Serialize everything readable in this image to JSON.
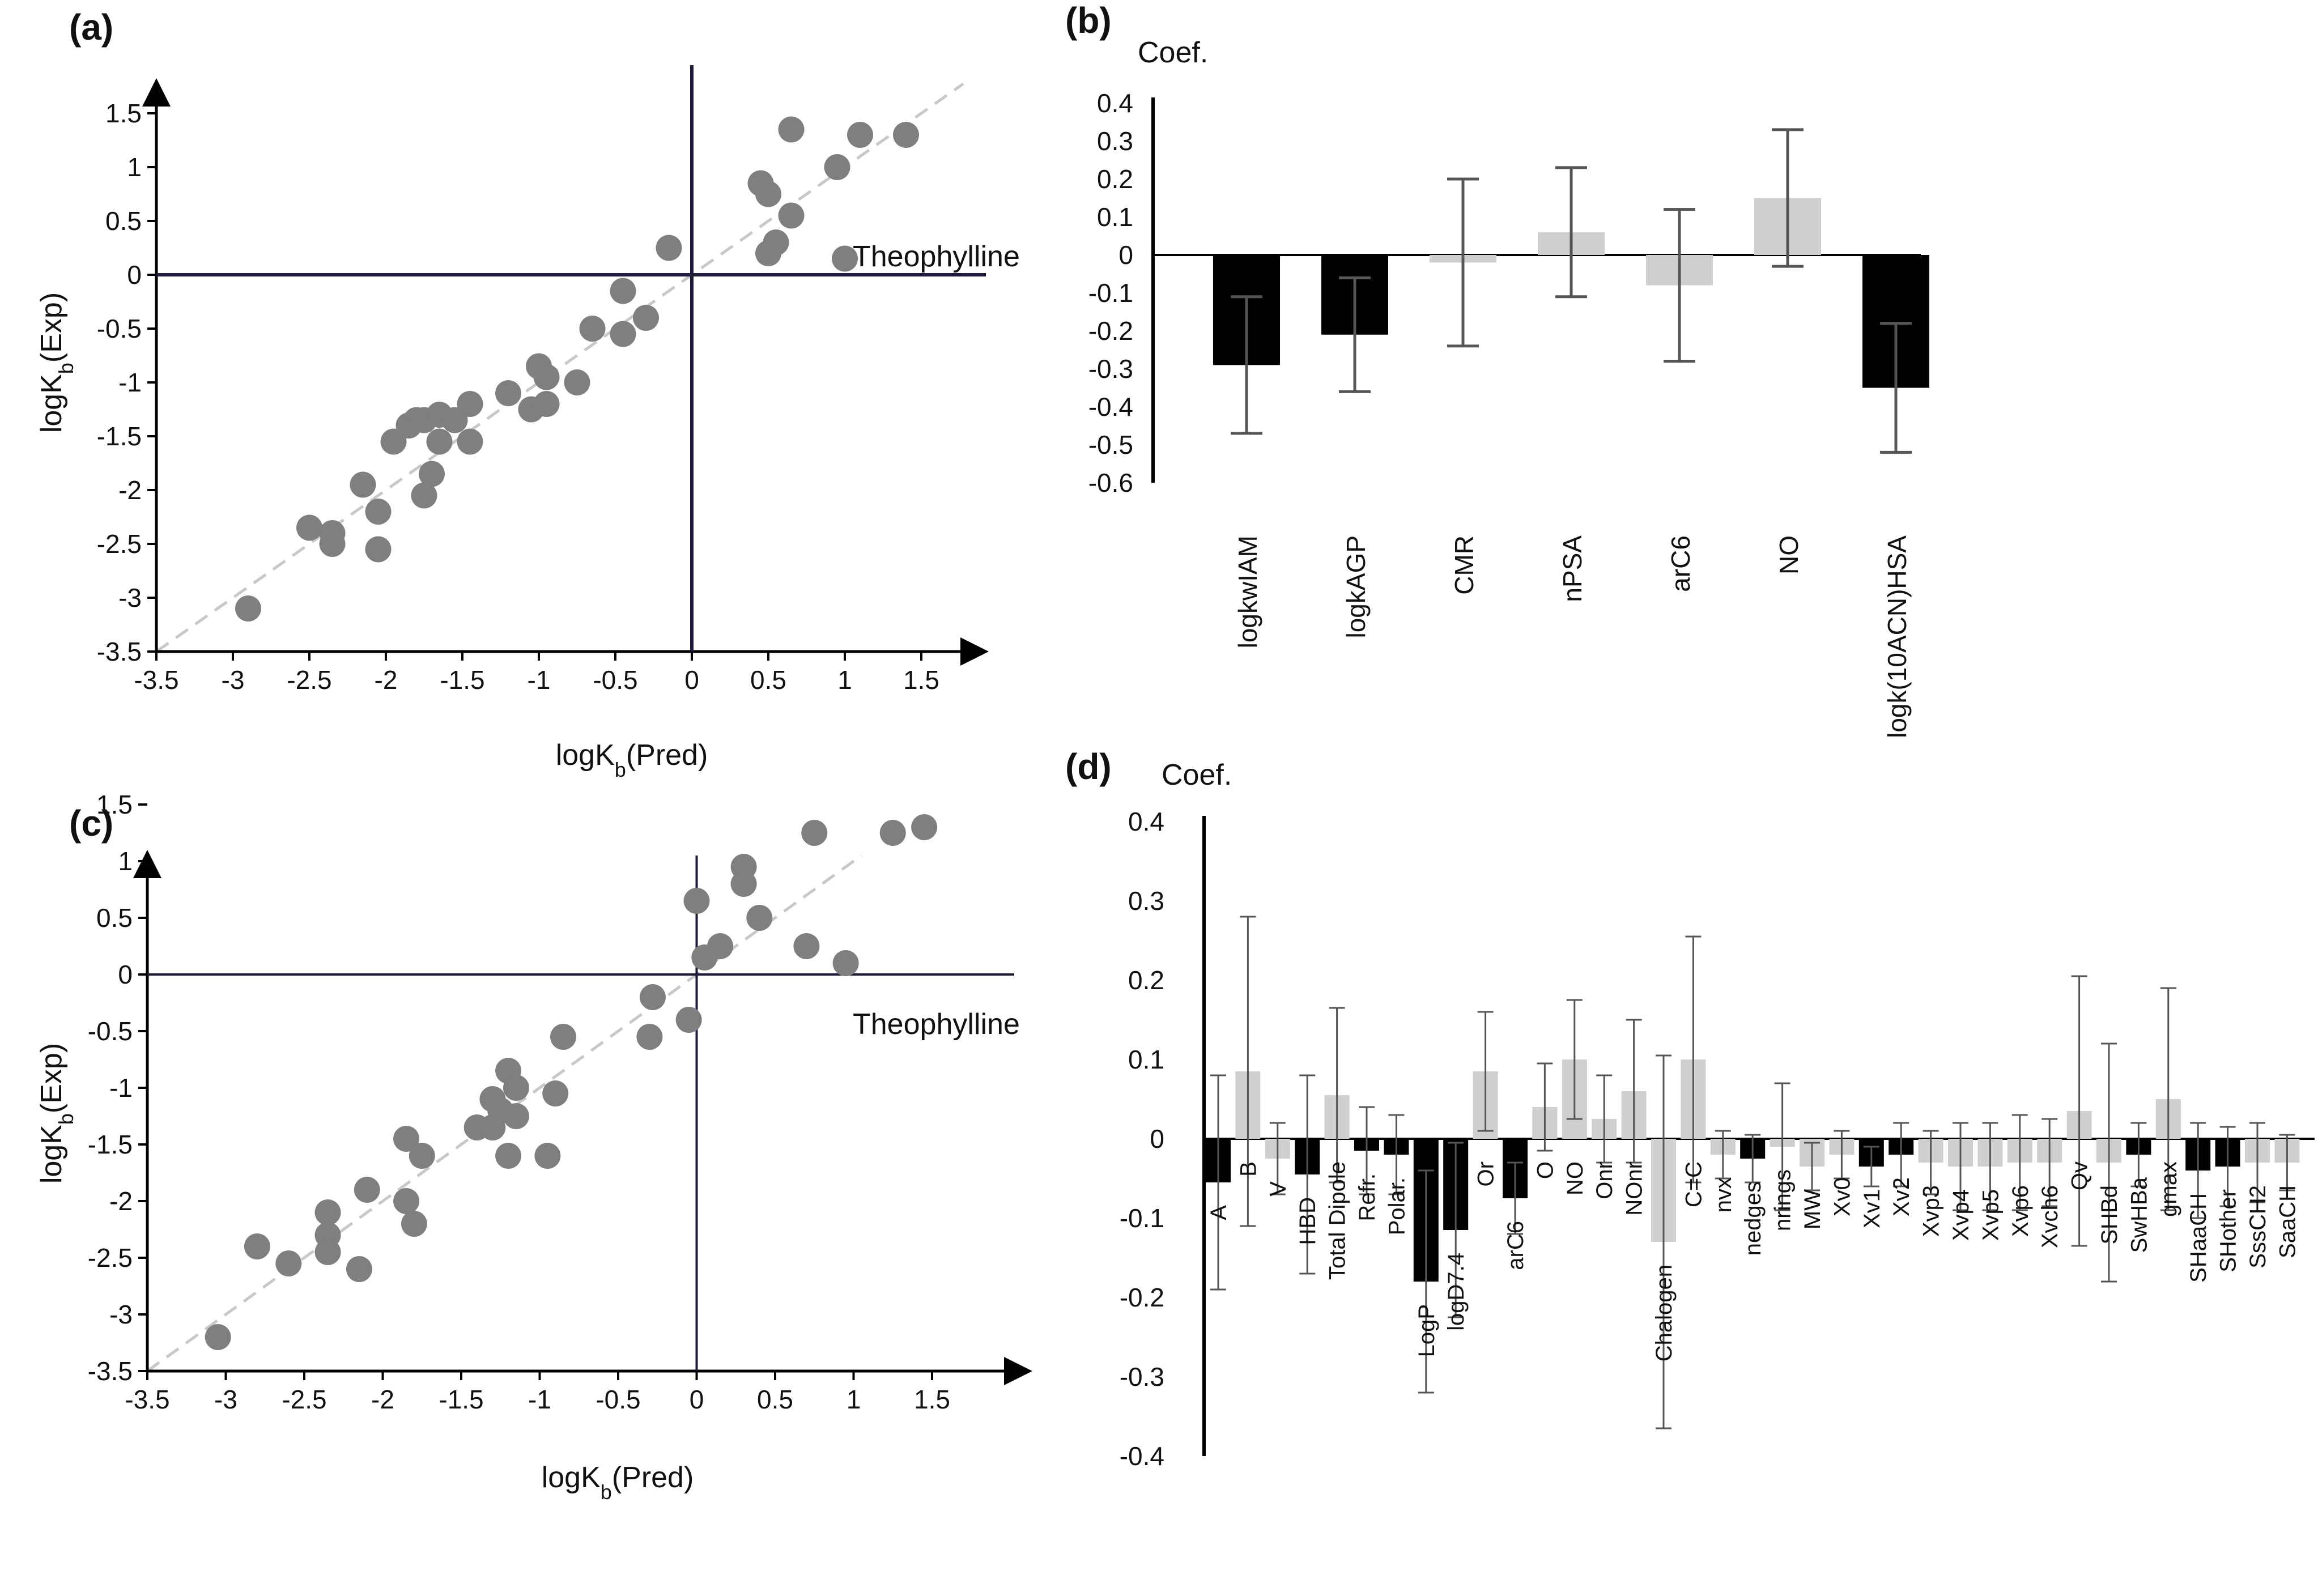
{
  "chart_data": [
    {
      "panel": "(a)",
      "type": "scatter",
      "xlabel": "logK",
      "xlabel_sub": "b",
      "xlabel_suffix": "(Pred)",
      "ylabel": "logK",
      "ylabel_sub": "b",
      "ylabel_suffix": "(Exp)",
      "xlim": [
        -3.5,
        2.0
      ],
      "ylim": [
        -3.5,
        2.0
      ],
      "x_ticks": [
        "-3.5",
        "-3",
        "-2.5",
        "-2",
        "-1.5",
        "-1",
        "-0.5",
        "0",
        "0.5",
        "1",
        "1.5"
      ],
      "y_ticks": [
        "-3.5",
        "-3",
        "-2.5",
        "-2",
        "-1.5",
        "-1",
        "-0.5",
        "0",
        "0.5",
        "1",
        "1.5"
      ],
      "annotation": "Theophylline",
      "reference_line": "y = x (dashed)",
      "points": [
        [
          -2.9,
          -3.1
        ],
        [
          -2.5,
          -2.35
        ],
        [
          -2.35,
          -2.5
        ],
        [
          -2.35,
          -2.4
        ],
        [
          -2.15,
          -1.95
        ],
        [
          -2.05,
          -2.2
        ],
        [
          -2.05,
          -2.55
        ],
        [
          -1.95,
          -1.55
        ],
        [
          -1.85,
          -1.4
        ],
        [
          -1.8,
          -1.35
        ],
        [
          -1.75,
          -1.35
        ],
        [
          -1.75,
          -2.05
        ],
        [
          -1.7,
          -1.85
        ],
        [
          -1.65,
          -1.3
        ],
        [
          -1.65,
          -1.55
        ],
        [
          -1.55,
          -1.35
        ],
        [
          -1.45,
          -1.55
        ],
        [
          -1.45,
          -1.2
        ],
        [
          -1.2,
          -1.1
        ],
        [
          -1.05,
          -1.25
        ],
        [
          -1.0,
          -0.85
        ],
        [
          -0.95,
          -1.2
        ],
        [
          -0.95,
          -0.95
        ],
        [
          -0.75,
          -1.0
        ],
        [
          -0.65,
          -0.5
        ],
        [
          -0.45,
          -0.55
        ],
        [
          -0.45,
          -0.15
        ],
        [
          -0.3,
          -0.4
        ],
        [
          -0.15,
          0.25
        ],
        [
          0.45,
          0.85
        ],
        [
          0.5,
          0.75
        ],
        [
          0.5,
          0.2
        ],
        [
          0.55,
          0.3
        ],
        [
          0.65,
          0.55
        ],
        [
          0.65,
          1.35
        ],
        [
          0.95,
          1.0
        ],
        [
          1.0,
          0.15
        ],
        [
          1.1,
          1.3
        ],
        [
          1.4,
          1.3
        ]
      ]
    },
    {
      "panel": "(b)",
      "type": "bar",
      "title": "Coef.",
      "ylim": [
        -0.6,
        0.4
      ],
      "y_ticks": [
        "0.4",
        "0.3",
        "0.2",
        "0.1",
        "0",
        "-0.1",
        "-0.2",
        "-0.3",
        "-0.4",
        "-0.5",
        "-0.6"
      ],
      "categories": [
        "logkwIAM",
        "logkAGP",
        "CMR",
        "nPSA",
        "arC6",
        "NO",
        "logk(10ACN)HSA"
      ],
      "values": [
        -0.29,
        -0.21,
        -0.02,
        0.06,
        -0.08,
        0.15,
        -0.35
      ],
      "error": [
        0.18,
        0.15,
        0.22,
        0.17,
        0.2,
        0.18,
        0.17
      ],
      "significant": [
        true,
        true,
        false,
        false,
        false,
        false,
        true
      ],
      "colors": {
        "significant": "#000000",
        "nonsignificant": "#cfcfcf"
      }
    },
    {
      "panel": "(c)",
      "type": "scatter",
      "xlabel": "logK",
      "xlabel_sub": "b",
      "xlabel_suffix": "(Pred)",
      "ylabel": "logK",
      "ylabel_sub": "b",
      "ylabel_suffix": "(Exp)",
      "xlim": [
        -3.5,
        2.0
      ],
      "ylim": [
        -3.5,
        2.0
      ],
      "x_ticks": [
        "-3.5",
        "-3",
        "-2.5",
        "-2",
        "-1.5",
        "-1",
        "-0.5",
        "0",
        "0.5",
        "1",
        "1.5"
      ],
      "y_ticks": [
        "-3.5",
        "-3",
        "-2.5",
        "-2",
        "-1.5",
        "-1",
        "-0.5",
        "0",
        "0.5",
        "1",
        "1.5"
      ],
      "annotation": "Theophylline",
      "reference_line": "y = x (dashed)",
      "points": [
        [
          -3.05,
          -3.2
        ],
        [
          -2.8,
          -2.4
        ],
        [
          -2.6,
          -2.55
        ],
        [
          -2.35,
          -2.3
        ],
        [
          -2.35,
          -2.45
        ],
        [
          -2.35,
          -2.1
        ],
        [
          -2.15,
          -2.6
        ],
        [
          -2.1,
          -1.9
        ],
        [
          -1.85,
          -2.0
        ],
        [
          -1.85,
          -1.45
        ],
        [
          -1.8,
          -2.2
        ],
        [
          -1.75,
          -1.6
        ],
        [
          -1.4,
          -1.35
        ],
        [
          -1.3,
          -1.1
        ],
        [
          -1.3,
          -1.35
        ],
        [
          -1.25,
          -1.2
        ],
        [
          -1.2,
          -0.85
        ],
        [
          -1.2,
          -1.6
        ],
        [
          -1.15,
          -1.0
        ],
        [
          -1.15,
          -1.25
        ],
        [
          -0.95,
          -1.6
        ],
        [
          -0.9,
          -1.05
        ],
        [
          -0.85,
          -0.55
        ],
        [
          -0.3,
          -0.55
        ],
        [
          -0.28,
          -0.2
        ],
        [
          -0.05,
          -0.4
        ],
        [
          0.0,
          0.65
        ],
        [
          0.05,
          0.15
        ],
        [
          0.15,
          0.25
        ],
        [
          0.3,
          0.95
        ],
        [
          0.3,
          0.8
        ],
        [
          0.4,
          0.5
        ],
        [
          0.7,
          0.25
        ],
        [
          0.75,
          1.25
        ],
        [
          0.95,
          0.1
        ],
        [
          1.25,
          1.25
        ],
        [
          1.45,
          1.3
        ]
      ]
    },
    {
      "panel": "(d)",
      "type": "bar",
      "title": "Coef.",
      "ylim": [
        -0.4,
        0.4
      ],
      "y_ticks": [
        "0.4",
        "0.3",
        "0.2",
        "0.1",
        "0",
        "-0.1",
        "-0.2",
        "-0.3",
        "-0.4"
      ],
      "categories": [
        "A",
        "B",
        "V",
        "HBD",
        "Total Dipole",
        "Refr.",
        "Polar.",
        "LogP",
        "logD7.4",
        "Or",
        "arC6",
        "O",
        "NO",
        "Onr",
        "NOnr",
        "Chalogen",
        "C=C",
        "nvx",
        "nedges",
        "nrings",
        "MW",
        "Xv0",
        "Xv1",
        "Xv2",
        "Xvp3",
        "Xvp4",
        "Xvp5",
        "Xvp6",
        "Xvch6",
        "Qv",
        "SHBd",
        "SwHBa",
        "gmax",
        "SHaaCH",
        "SHother",
        "SssCH2",
        "SaaCH"
      ],
      "values": [
        -0.055,
        0.085,
        -0.025,
        -0.045,
        0.055,
        -0.015,
        -0.02,
        -0.18,
        -0.115,
        0.085,
        -0.075,
        0.04,
        0.1,
        0.025,
        0.06,
        -0.13,
        0.1,
        -0.02,
        -0.025,
        -0.01,
        -0.035,
        -0.02,
        -0.035,
        -0.02,
        -0.03,
        -0.035,
        -0.035,
        -0.03,
        -0.03,
        0.035,
        -0.03,
        -0.02,
        0.05,
        -0.04,
        -0.035,
        -0.03,
        -0.03
      ],
      "error": [
        0.135,
        0.195,
        0.045,
        0.125,
        0.11,
        0.055,
        0.05,
        0.14,
        0.11,
        0.075,
        0.045,
        0.055,
        0.075,
        0.055,
        0.09,
        0.235,
        0.155,
        0.03,
        0.03,
        0.08,
        0.03,
        0.03,
        0.025,
        0.04,
        0.04,
        0.055,
        0.055,
        0.06,
        0.055,
        0.17,
        0.15,
        0.04,
        0.14,
        0.06,
        0.05,
        0.05,
        0.035
      ],
      "significant": [
        true,
        false,
        false,
        true,
        false,
        true,
        true,
        true,
        true,
        false,
        true,
        false,
        false,
        false,
        false,
        false,
        false,
        false,
        true,
        false,
        false,
        false,
        true,
        true,
        false,
        false,
        false,
        false,
        false,
        false,
        false,
        true,
        false,
        true,
        true,
        false,
        false
      ],
      "colors": {
        "significant": "#000000",
        "nonsignificant": "#cfcfcf"
      }
    }
  ],
  "colors": {
    "marker": "#7f7f7f",
    "axis_dark": "#1c1c3a",
    "reference_line": "#c8c8c8",
    "errorbar": "#555555"
  }
}
